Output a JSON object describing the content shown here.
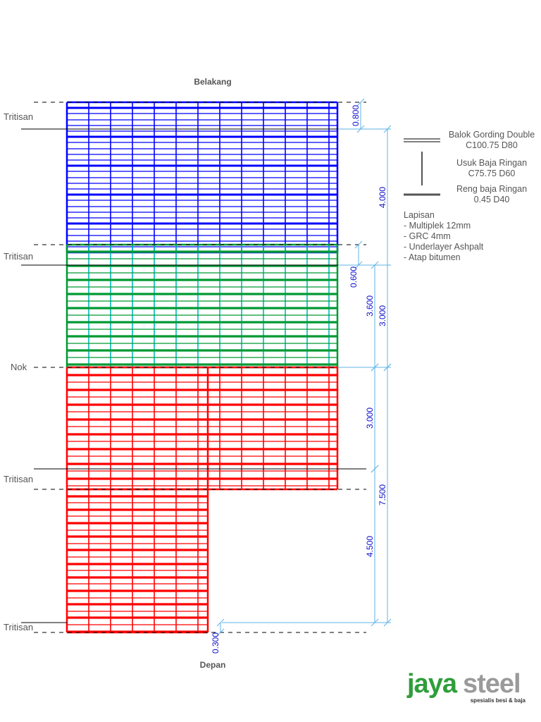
{
  "labels": {
    "top": "Belakang",
    "bottom": "Depan",
    "tritisan": "Tritisan",
    "nok": "Nok"
  },
  "dimensions": {
    "d_0800": "0.800",
    "d_4000": "4.000",
    "d_0600": "0.600",
    "d_3600": "3.600",
    "d_3000_upper": "3.000",
    "d_3000_lower": "3.000",
    "d_7500": "7.500",
    "d_4500": "4.500",
    "d_0300": "0.300"
  },
  "legend": {
    "gording": [
      "Balok Gording Double",
      "C100.75 D80"
    ],
    "usuk": [
      "Usuk Baja Ringan",
      "C75.75 D60"
    ],
    "reng": [
      "Reng baja Ringan",
      "0.45 D40"
    ],
    "lapisan_title": "Lapisan",
    "lapisan_items": [
      "- Multiplek 12mm",
      "- GRC 4mm",
      "- Underlayer Ashpalt",
      "- Atap bitumen"
    ]
  },
  "brand": {
    "name_a": "jaya",
    "name_b": "steel",
    "tagline": "spesialis besi & baja"
  },
  "colors": {
    "blue": "#0000ff",
    "green": "#009933",
    "teal": "#00bbbb",
    "red": "#ff0000",
    "dim": "#5fb3e6",
    "dim_text": "#1010cc",
    "brand": "#2e9e3a"
  }
}
